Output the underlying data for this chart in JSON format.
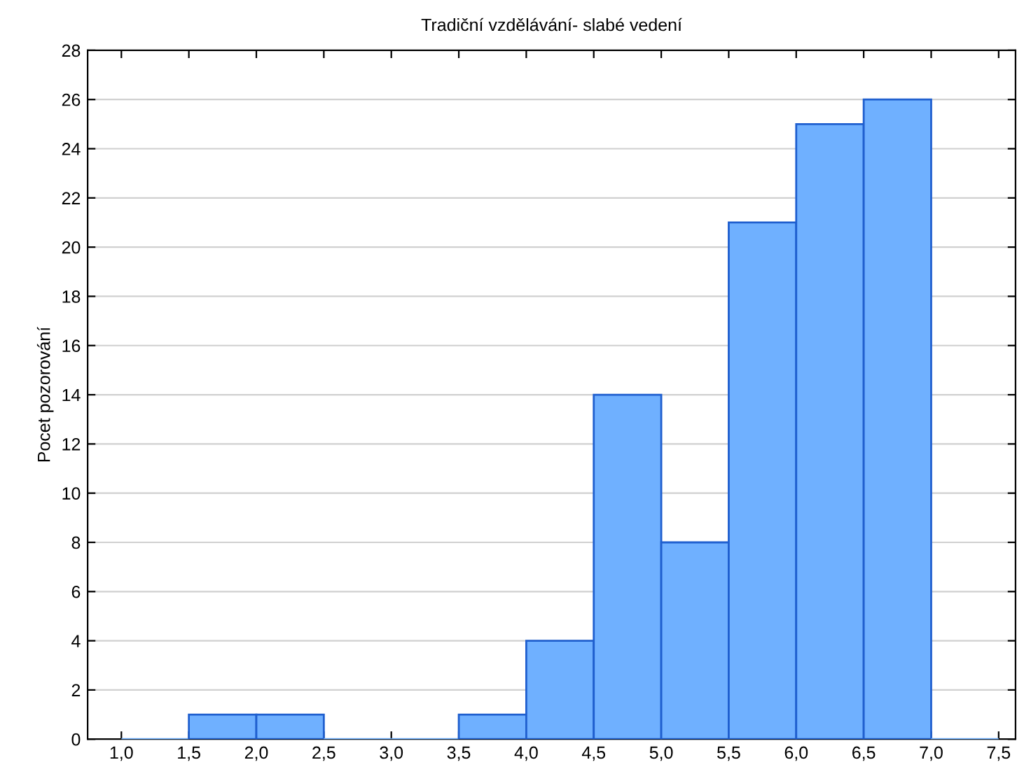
{
  "chart_data": {
    "type": "histogram",
    "title": "Tradiční vzdělávání- slabé vedení",
    "ylabel": "Pocet pozorování",
    "bins": [
      1.0,
      1.5,
      2.0,
      2.5,
      3.0,
      3.5,
      4.0,
      4.5,
      5.0,
      5.5,
      6.0,
      6.5,
      7.0,
      7.5
    ],
    "values": [
      0,
      1,
      1,
      0,
      0,
      1,
      4,
      14,
      8,
      21,
      25,
      26,
      0
    ],
    "color": "#6fb0ff",
    "xlim": [
      0.75,
      7.625
    ],
    "xticks": [
      {
        "value": 1.0,
        "label": "1,0"
      },
      {
        "value": 1.5,
        "label": "1,5"
      },
      {
        "value": 2.0,
        "label": "2,0"
      },
      {
        "value": 2.5,
        "label": "2,5"
      },
      {
        "value": 3.0,
        "label": "3,0"
      },
      {
        "value": 3.5,
        "label": "3,5"
      },
      {
        "value": 4.0,
        "label": "4,0"
      },
      {
        "value": 4.5,
        "label": "4,5"
      },
      {
        "value": 5.0,
        "label": "5,0"
      },
      {
        "value": 5.5,
        "label": "5,5"
      },
      {
        "value": 6.0,
        "label": "6,0"
      },
      {
        "value": 6.5,
        "label": "6,5"
      },
      {
        "value": 7.0,
        "label": "7,0"
      },
      {
        "value": 7.5,
        "label": "7,5"
      }
    ],
    "ylim": [
      0,
      28
    ],
    "yticks": [
      0,
      2,
      4,
      6,
      8,
      10,
      12,
      14,
      16,
      18,
      20,
      22,
      24,
      26,
      28
    ],
    "grid": "y"
  }
}
